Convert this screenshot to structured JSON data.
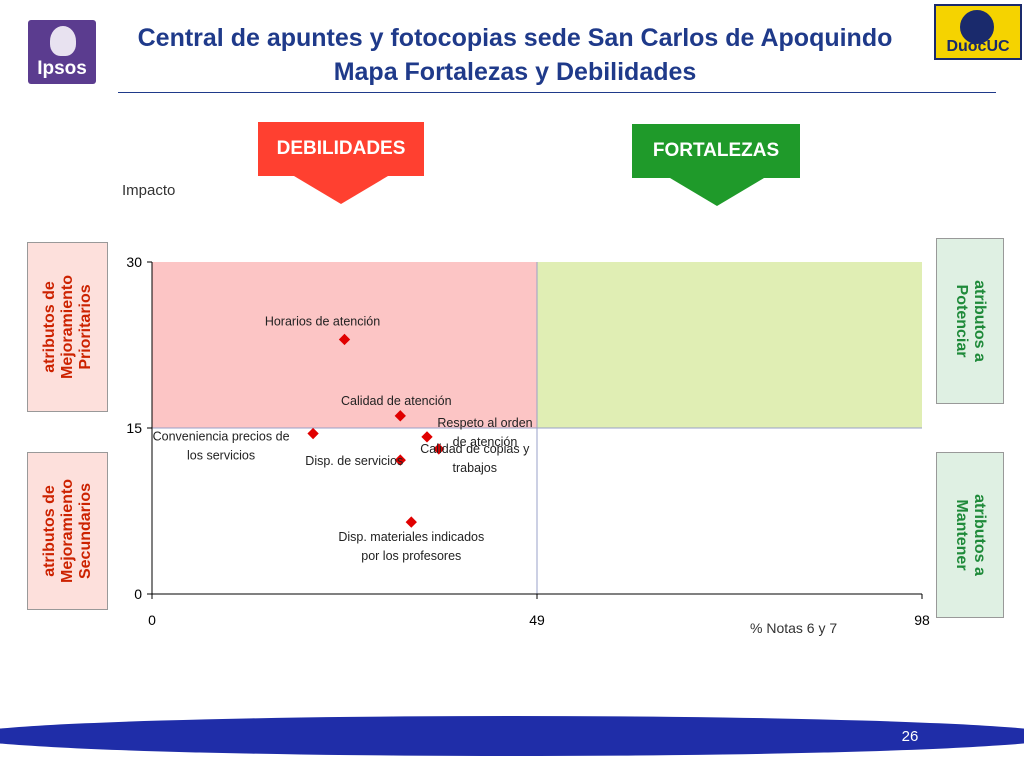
{
  "header": {
    "title_line1": "Central de apuntes y fotocopias sede San Carlos de Apoquindo",
    "title_line2": "Mapa Fortalezas y Debilidades",
    "logo_left_text": "Ipsos",
    "logo_right_text": "DuocUC"
  },
  "banners": {
    "debilidades": "DEBILIDADES",
    "fortalezas": "FORTALEZAS"
  },
  "side_labels": {
    "prioritarios": "atributos de\nMejoramiento\nPrioritarios",
    "secundarios": "atributos de\nMejoramiento\nSecundarios",
    "potenciar": "atributos a\nPotenciar",
    "mantener": "atributos a\nMantener"
  },
  "colors": {
    "title": "#1f3a8a",
    "debilidades": "#ff4030",
    "fortalezas": "#1f9a2a",
    "zone_weak": "#fcc5c5",
    "zone_strong": "#e0eeb4",
    "marker": "#e00000",
    "footer": "#1f2da8"
  },
  "chart_data": {
    "type": "scatter",
    "xlabel": "% Notas 6 y 7",
    "ylabel": "Impacto",
    "xlim": [
      0,
      98
    ],
    "ylim": [
      0,
      30
    ],
    "x_ticks": [
      "0",
      "49",
      "98"
    ],
    "y_ticks": [
      "0",
      "15",
      "30"
    ],
    "x_divider": 49,
    "y_divider": 15,
    "grid": false,
    "points": [
      {
        "label": "Horarios de atención",
        "x": 24.5,
        "y": 23.0
      },
      {
        "label": "Calidad de atención",
        "x": 31.6,
        "y": 16.1
      },
      {
        "label": "Conveniencia precios de los servicios",
        "x": 20.5,
        "y": 14.5
      },
      {
        "label": "Respeto al orden de atención",
        "x": 35.0,
        "y": 14.2
      },
      {
        "label": "Calidad de copias y trabajos",
        "x": 36.5,
        "y": 13.1
      },
      {
        "label": "Disp. de servicios",
        "x": 31.6,
        "y": 12.1
      },
      {
        "label": "Disp. materiales indicados por los profesores",
        "x": 33.0,
        "y": 6.5
      }
    ]
  },
  "footer": {
    "page_number": "26"
  }
}
